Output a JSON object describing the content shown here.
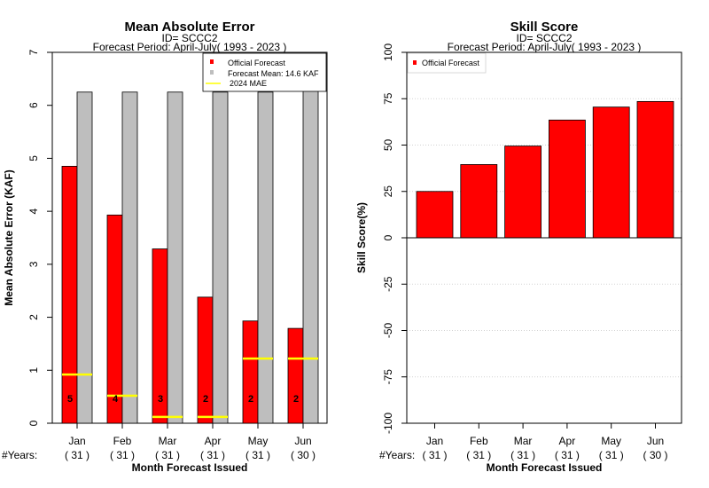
{
  "colors": {
    "official": "#ff0000",
    "mean": "#bebebe",
    "mae2024": "#ffff00",
    "grid": "#d3d3d3"
  },
  "chart_data": [
    {
      "type": "bar",
      "title": "Mean Absolute Error",
      "subtitle_id": "ID= SCCC2",
      "subtitle_period": "Forecast Period: April-July( 1993 - 2023 )",
      "xlabel": "Month Forecast Issued",
      "ylabel": "Mean Absolute Error (KAF)",
      "ylim": [
        0,
        7
      ],
      "yticks": [
        "0",
        "1",
        "2",
        "3",
        "4",
        "5",
        "6",
        "7"
      ],
      "years_label": "#Years:",
      "categories": [
        "Jan",
        "Feb",
        "Mar",
        "Apr",
        "May",
        "Jun"
      ],
      "years": [
        "( 31 )",
        "( 31 )",
        "( 31 )",
        "( 31 )",
        "( 31 )",
        "( 30 )"
      ],
      "legend": [
        "Official Forecast",
        "Forecast Mean: 14.6 KAF",
        "2024  MAE"
      ],
      "legend_position": "top-right",
      "series": [
        {
          "name": "Official Forecast",
          "values": [
            4.85,
            3.93,
            3.29,
            2.38,
            1.93,
            1.79
          ]
        },
        {
          "name": "Forecast Mean: 14.6 KAF",
          "values": [
            6.25,
            6.25,
            6.25,
            6.25,
            6.25,
            6.36
          ]
        },
        {
          "name": "2024  MAE",
          "values": [
            0.92,
            0.52,
            0.12,
            0.12,
            1.22,
            1.22
          ]
        }
      ],
      "bar_counts": [
        "5",
        "4",
        "3",
        "2",
        "2",
        "2"
      ]
    },
    {
      "type": "bar",
      "title": "Skill Score",
      "subtitle_id": "ID= SCCC2",
      "subtitle_period": "Forecast Period: April-July( 1993 - 2023 )",
      "xlabel": "Month Forecast Issued",
      "ylabel": "Skill Score(%)",
      "ylim": [
        -100,
        100
      ],
      "yticks": [
        "-100",
        "-75",
        "-50",
        "-25",
        "0",
        "25",
        "50",
        "75",
        "100"
      ],
      "years_label": "#Years:",
      "categories": [
        "Jan",
        "Feb",
        "Mar",
        "Apr",
        "May",
        "Jun"
      ],
      "years": [
        "( 31 )",
        "( 31 )",
        "( 31 )",
        "( 31 )",
        "( 31 )",
        "( 30 )"
      ],
      "legend": [
        "Official Forecast"
      ],
      "legend_position": "top-left",
      "grid": true,
      "series": [
        {
          "name": "Official Forecast",
          "values": [
            25,
            39.5,
            49.5,
            63.5,
            70.5,
            73.5
          ]
        }
      ]
    }
  ]
}
